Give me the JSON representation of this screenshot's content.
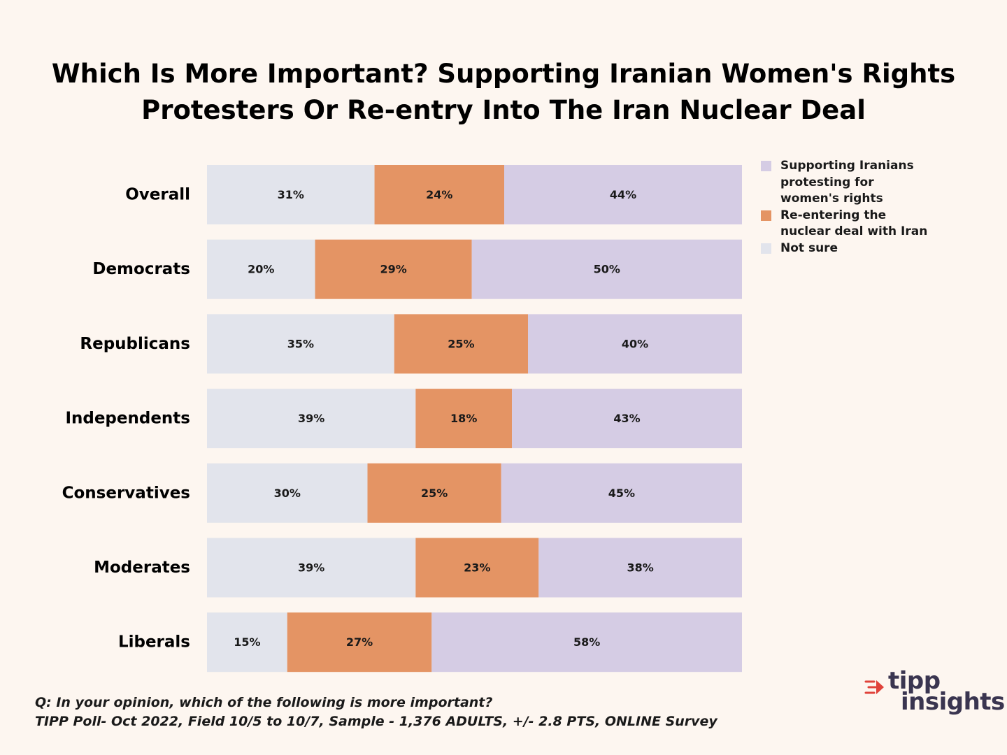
{
  "title": {
    "line1": "Which Is More Important? Supporting Iranian Women's Rights",
    "line2": "Protesters Or Re-entry Into The Iran Nuclear Deal"
  },
  "legend": [
    {
      "label": "Supporting Iranians\nprotesting for\nwomen's rights",
      "color": "#d5cce4",
      "icon": "square-swatch"
    },
    {
      "label": "Re-entering the\nnuclear deal with Iran",
      "color": "#e49464",
      "icon": "square-swatch"
    },
    {
      "label": "Not sure",
      "color": "#e2e4ec",
      "icon": "square-swatch"
    }
  ],
  "footnote": {
    "question": "Q: In your opinion, which of the following is more important?",
    "source": "TIPP Poll- Oct 2022, Field 10/5 to 10/7, Sample - 1,376 ADULTS, +/- 2.8 PTS, ONLINE Survey"
  },
  "logo": {
    "line1": "tipp",
    "line2": "insights",
    "icon": "arrow-lines-icon",
    "accent_color": "#e0423a",
    "text_color": "#3a3550"
  },
  "chart_data": {
    "type": "bar",
    "orientation": "horizontal",
    "stacked": true,
    "normalized": true,
    "title": "Which Is More Important? Supporting Iranian Women's Rights Protesters Or Re-entry Into The Iran Nuclear Deal",
    "categories": [
      "Overall",
      "Democrats",
      "Republicans",
      "Independents",
      "Conservatives",
      "Moderates",
      "Liberals"
    ],
    "series": [
      {
        "name": "Not sure",
        "color": "#e2e4ec",
        "values": [
          31,
          20,
          35,
          39,
          30,
          39,
          15
        ],
        "labels": [
          "31%",
          "20%",
          "35%",
          "39%",
          "30%",
          "39%",
          "15%"
        ]
      },
      {
        "name": "Re-entering the nuclear deal with Iran",
        "color": "#e49464",
        "values": [
          24,
          29,
          25,
          18,
          25,
          23,
          27
        ],
        "labels": [
          "24%",
          "29%",
          "25%",
          "18%",
          "25%",
          "23%",
          "27%"
        ]
      },
      {
        "name": "Supporting Iranians protesting for women's rights",
        "color": "#d5cce4",
        "values": [
          44,
          50,
          40,
          43,
          45,
          38,
          58
        ],
        "labels": [
          "44%",
          "50%",
          "40%",
          "43%",
          "45%",
          "38%",
          "58%"
        ]
      }
    ],
    "xlabel": "",
    "ylabel": "",
    "legend_position": "right",
    "grid": false
  }
}
